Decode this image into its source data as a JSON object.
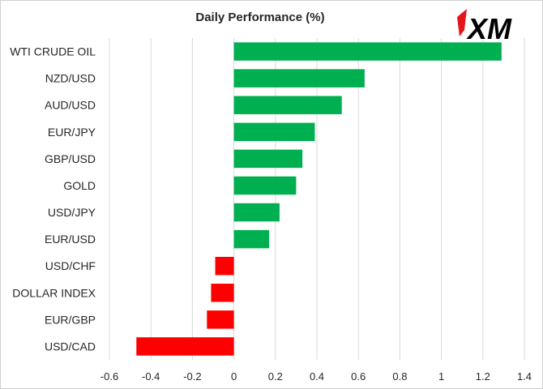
{
  "chart_data": {
    "type": "bar",
    "orientation": "horizontal",
    "title": "Daily Performance (%)",
    "categories": [
      "WTI CRUDE OIL",
      "NZD/USD",
      "AUD/USD",
      "EUR/JPY",
      "GBP/USD",
      "GOLD",
      "USD/JPY",
      "EUR/USD",
      "USD/CHF",
      "DOLLAR INDEX",
      "EUR/GBP",
      "USD/CAD"
    ],
    "values": [
      1.29,
      0.63,
      0.52,
      0.39,
      0.33,
      0.3,
      0.22,
      0.17,
      -0.09,
      -0.11,
      -0.13,
      -0.47
    ],
    "xlim": [
      -0.6,
      1.4
    ],
    "x_ticks": [
      -0.6,
      -0.4,
      -0.2,
      0,
      0.2,
      0.4,
      0.6,
      0.8,
      1,
      1.2,
      1.4
    ],
    "x_tick_labels": [
      "-0.6",
      "-0.4",
      "-0.2",
      "0",
      "0.2",
      "0.4",
      "0.6",
      "0.8",
      "1",
      "1.2",
      "1.4"
    ],
    "grid": true,
    "legend": "none",
    "colors": {
      "positive": "#00b050",
      "negative": "#ff0000",
      "grid": "#d9d9d9",
      "text": "#262626",
      "logo_accent": "#e4161b"
    }
  },
  "logo": {
    "text": "XM",
    "icon": "xm-logo"
  }
}
